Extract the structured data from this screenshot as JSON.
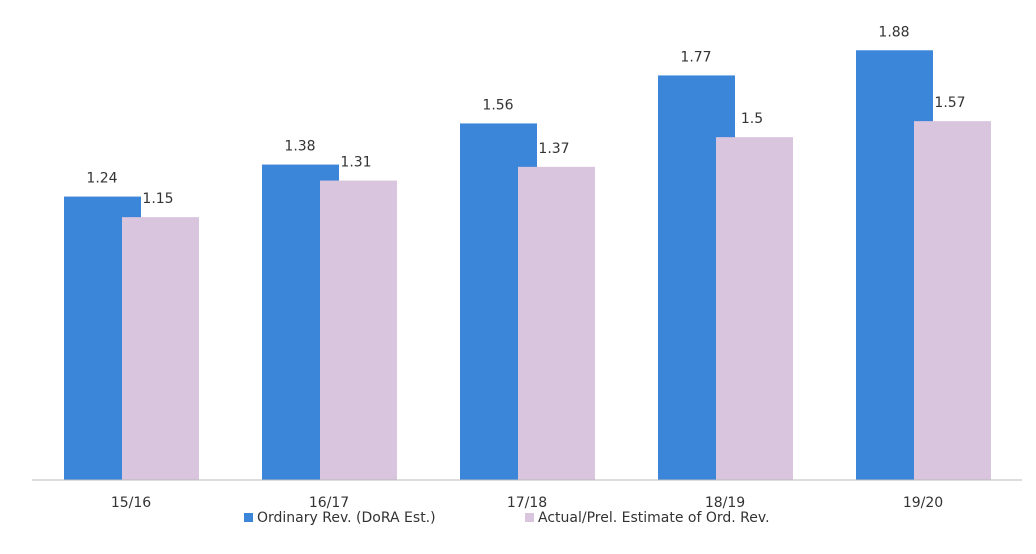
{
  "chart_data": {
    "type": "bar",
    "categories": [
      "15/16",
      "16/17",
      "17/18",
      "18/19",
      "19/20"
    ],
    "series": [
      {
        "name": "Ordinary Rev. (DoRA Est.)",
        "color": "#3b86d8",
        "values": [
          1.24,
          1.38,
          1.56,
          1.77,
          1.88
        ]
      },
      {
        "name": "Actual/Prel. Estimate of Ord. Rev.",
        "color": "#dac5de",
        "values": [
          1.15,
          1.31,
          1.37,
          1.5,
          1.57
        ]
      }
    ],
    "ylim": [
      0,
      2.1
    ],
    "legend": "bottom"
  }
}
